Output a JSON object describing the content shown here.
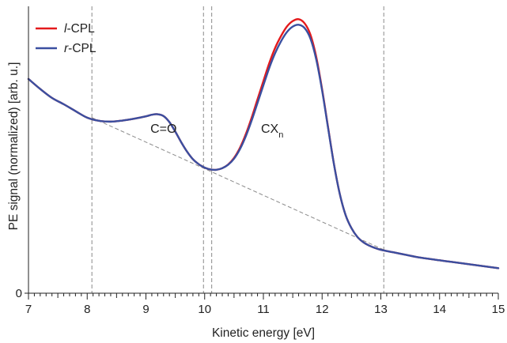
{
  "chart_data": {
    "type": "line",
    "title": "",
    "xlabel": "Kinetic energy [eV]",
    "ylabel": "PE signal (normalized) [arb. u.]",
    "xlim": [
      7,
      15
    ],
    "ylim": [
      0,
      1.09
    ],
    "x_ticks": [
      7,
      8,
      9,
      10,
      11,
      12,
      13,
      14,
      15
    ],
    "x_tick_labels": [
      "7",
      "8",
      "9",
      "10",
      "11",
      "12",
      "13",
      "14",
      "15"
    ],
    "y_ticks": [
      0
    ],
    "y_tick_labels": [
      "0"
    ],
    "grid": false,
    "legend_position": "top-left",
    "series": [
      {
        "name": "l-CPL",
        "name_prefix": "l",
        "name_suffix": "-CPL",
        "color": "#e41a1c",
        "x": [
          7.0,
          7.2,
          7.4,
          7.6,
          7.8,
          8.0,
          8.2,
          8.4,
          8.6,
          8.8,
          9.0,
          9.1,
          9.2,
          9.3,
          9.4,
          9.5,
          9.6,
          9.7,
          9.8,
          9.9,
          10.0,
          10.1,
          10.2,
          10.3,
          10.4,
          10.5,
          10.6,
          10.7,
          10.8,
          10.9,
          11.0,
          11.1,
          11.2,
          11.3,
          11.4,
          11.5,
          11.6,
          11.7,
          11.8,
          11.9,
          12.0,
          12.1,
          12.2,
          12.3,
          12.4,
          12.5,
          12.6,
          12.7,
          12.8,
          12.9,
          13.0,
          13.2,
          13.4,
          13.6,
          13.8,
          14.0,
          14.2,
          14.4,
          14.6,
          14.8,
          15.0
        ],
        "y": [
          0.814,
          0.776,
          0.742,
          0.718,
          0.692,
          0.667,
          0.655,
          0.652,
          0.656,
          0.663,
          0.672,
          0.678,
          0.68,
          0.673,
          0.65,
          0.614,
          0.574,
          0.538,
          0.509,
          0.49,
          0.477,
          0.47,
          0.469,
          0.475,
          0.489,
          0.514,
          0.552,
          0.604,
          0.667,
          0.737,
          0.806,
          0.874,
          0.932,
          0.977,
          1.013,
          1.034,
          1.041,
          1.026,
          0.983,
          0.898,
          0.775,
          0.633,
          0.493,
          0.378,
          0.297,
          0.247,
          0.214,
          0.194,
          0.181,
          0.172,
          0.165,
          0.156,
          0.147,
          0.138,
          0.131,
          0.125,
          0.119,
          0.113,
          0.107,
          0.101,
          0.095
        ]
      },
      {
        "name": "r-CPL",
        "name_prefix": "r",
        "name_suffix": "-CPL",
        "color": "#3a4fa0",
        "x": [
          7.0,
          7.2,
          7.4,
          7.6,
          7.8,
          8.0,
          8.2,
          8.4,
          8.6,
          8.8,
          9.0,
          9.1,
          9.2,
          9.3,
          9.4,
          9.5,
          9.6,
          9.7,
          9.8,
          9.9,
          10.0,
          10.1,
          10.2,
          10.3,
          10.4,
          10.5,
          10.6,
          10.7,
          10.8,
          10.9,
          11.0,
          11.1,
          11.2,
          11.3,
          11.4,
          11.5,
          11.6,
          11.7,
          11.8,
          11.9,
          12.0,
          12.1,
          12.2,
          12.3,
          12.4,
          12.5,
          12.6,
          12.7,
          12.8,
          12.9,
          13.0,
          13.2,
          13.4,
          13.6,
          13.8,
          14.0,
          14.2,
          14.4,
          14.6,
          14.8,
          15.0
        ],
        "y": [
          0.814,
          0.776,
          0.742,
          0.718,
          0.692,
          0.667,
          0.655,
          0.652,
          0.656,
          0.663,
          0.672,
          0.678,
          0.68,
          0.673,
          0.65,
          0.614,
          0.574,
          0.538,
          0.509,
          0.49,
          0.477,
          0.47,
          0.469,
          0.475,
          0.488,
          0.511,
          0.547,
          0.596,
          0.656,
          0.723,
          0.79,
          0.856,
          0.912,
          0.957,
          0.992,
          1.013,
          1.02,
          1.008,
          0.968,
          0.888,
          0.77,
          0.63,
          0.492,
          0.378,
          0.297,
          0.247,
          0.214,
          0.194,
          0.181,
          0.172,
          0.165,
          0.156,
          0.147,
          0.138,
          0.131,
          0.125,
          0.119,
          0.113,
          0.107,
          0.101,
          0.095
        ]
      }
    ],
    "vertical_lines_x": [
      8.08,
      9.98,
      10.12,
      13.05
    ],
    "baseline_segment": {
      "x": [
        8.08,
        13.05
      ],
      "y": [
        0.667,
        0.165
      ]
    },
    "annotations": [
      {
        "id": "co",
        "text": "C=O",
        "x": 9.3,
        "y": 0.61
      },
      {
        "id": "cxn",
        "text": "CX",
        "subscript": "n",
        "x": 11.15,
        "y": 0.61
      }
    ]
  }
}
